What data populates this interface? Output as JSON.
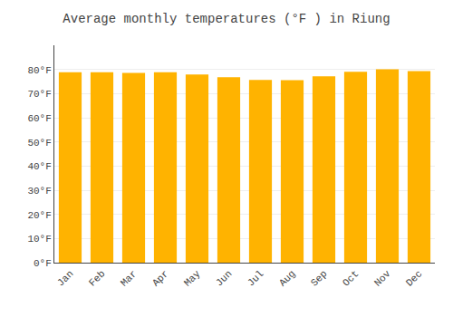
{
  "chart_data": {
    "type": "bar",
    "title": "Average monthly temperatures (°F ) in Riung",
    "categories": [
      "Jan",
      "Feb",
      "Mar",
      "Apr",
      "May",
      "Jun",
      "Jul",
      "Aug",
      "Sep",
      "Oct",
      "Nov",
      "Dec"
    ],
    "values": [
      78.8,
      78.8,
      78.6,
      78.8,
      77.9,
      76.8,
      75.7,
      75.6,
      77.2,
      79.0,
      80.1,
      79.3
    ],
    "color": "#FFB300",
    "ylim": [
      0,
      90
    ],
    "yticks": [
      {
        "value": 0,
        "label": "0°F"
      },
      {
        "value": 10,
        "label": "10°F"
      },
      {
        "value": 20,
        "label": "20°F"
      },
      {
        "value": 30,
        "label": "30°F"
      },
      {
        "value": 40,
        "label": "40°F"
      },
      {
        "value": 50,
        "label": "50°F"
      },
      {
        "value": 60,
        "label": "60°F"
      },
      {
        "value": 70,
        "label": "70°F"
      },
      {
        "value": 80,
        "label": "80°F"
      }
    ],
    "grid": true
  }
}
